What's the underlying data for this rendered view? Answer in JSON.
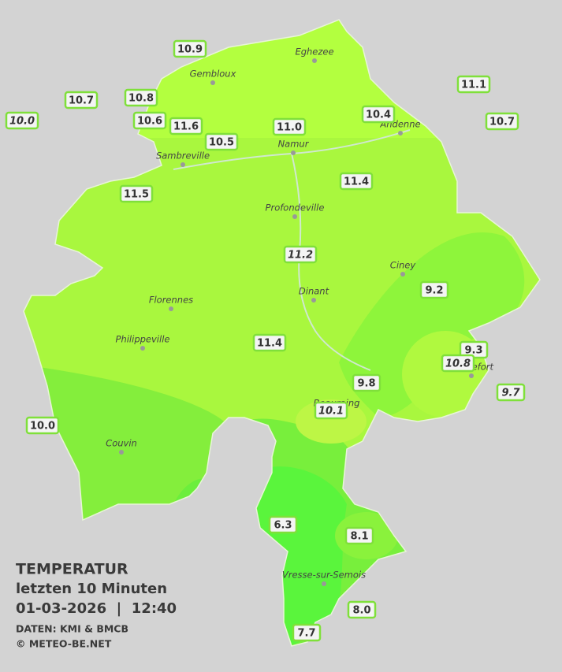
{
  "header": {
    "title": "TEMPERATUR",
    "subtitle": "letzten 10 Minuten",
    "datetime": "01-03-2026  |  12:40",
    "source": "DATEN: KMI & BMCB",
    "credit": "© METEO-BE.NET"
  },
  "cities": [
    "Eghezee",
    "Gembloux",
    "Andenne",
    "Namur",
    "Sambreville",
    "Profondeville",
    "Ciney",
    "Dinant",
    "Florennes",
    "Philippeville",
    "Rochefort",
    "Beauraing",
    "Couvin",
    "Vresse-sur-Semois"
  ],
  "stations": [
    {
      "value": "10.9"
    },
    {
      "value": "10.7"
    },
    {
      "value": "10.8"
    },
    {
      "value": "10.0",
      "italic": true
    },
    {
      "value": "10.6"
    },
    {
      "value": "11.6"
    },
    {
      "value": "10.5"
    },
    {
      "value": "11.0"
    },
    {
      "value": "10.4"
    },
    {
      "value": "11.1"
    },
    {
      "value": "10.7"
    },
    {
      "value": "11.5"
    },
    {
      "value": "11.4"
    },
    {
      "value": "11.2",
      "italic": true
    },
    {
      "value": "9.2"
    },
    {
      "value": "11.4"
    },
    {
      "value": "9.3"
    },
    {
      "value": "10.8",
      "italic": true
    },
    {
      "value": "9.8"
    },
    {
      "value": "9.7",
      "italic": true
    },
    {
      "value": "10.1",
      "italic": true
    },
    {
      "value": "10.0"
    },
    {
      "value": "6.3"
    },
    {
      "value": "8.1"
    },
    {
      "value": "8.0"
    },
    {
      "value": "7.7"
    }
  ]
}
